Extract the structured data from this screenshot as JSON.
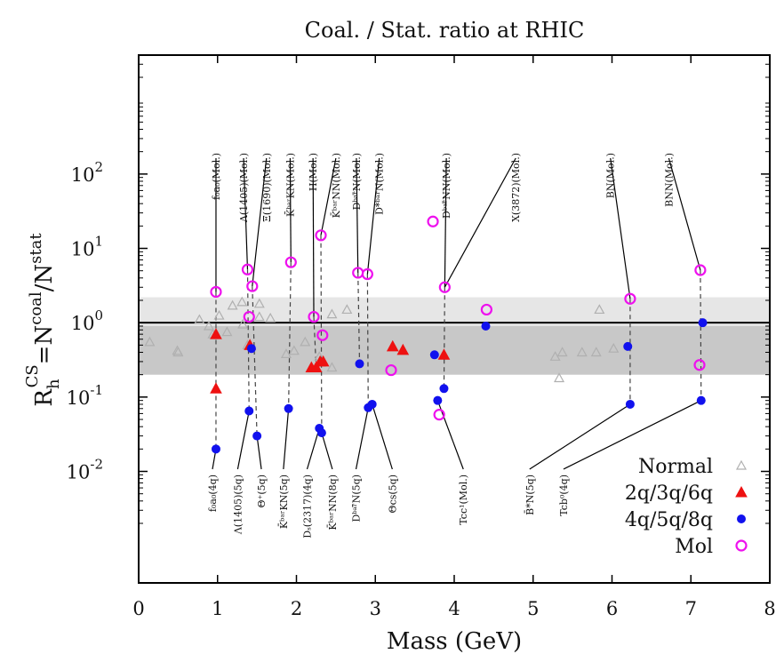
{
  "chart_data": {
    "type": "scatter",
    "title": "Coal. / Stat. ratio at RHIC",
    "xlabel": "Mass (GeV)",
    "ylabel": {
      "base": "R",
      "sub": "h",
      "sup": "CS",
      "rest": "=N",
      "num_sup": "coal",
      "den": "/N",
      "den_sup": "stat"
    },
    "xlim": [
      0,
      8
    ],
    "ylim_log10": [
      -3.5,
      3.6
    ],
    "log_y": true,
    "x_ticks": [
      0,
      1,
      2,
      3,
      4,
      5,
      6,
      7,
      8
    ],
    "x_tick_labels": [
      "0",
      "1",
      "2",
      "3",
      "4",
      "5",
      "6",
      "7",
      "8"
    ],
    "y_ticks": [
      {
        "value": 100,
        "base": "10",
        "exp": "2"
      },
      {
        "value": 10,
        "base": "10",
        "exp": "1"
      },
      {
        "value": 1,
        "base": "10",
        "exp": "0"
      },
      {
        "value": 0.1,
        "base": "10",
        "exp": "-1"
      },
      {
        "value": 0.01,
        "base": "10",
        "exp": "-2"
      }
    ],
    "bands": [
      {
        "y_min": 0.2,
        "y_max": 2.2,
        "color": "#e6e6e6"
      },
      {
        "y_min": 0.2,
        "y_max": 0.9,
        "color": "#c8c8c8"
      }
    ],
    "reference_line": {
      "y": 1.0,
      "color": "#000000"
    },
    "series": [
      {
        "name": "Normal",
        "marker": "triangle-open",
        "color": "#b0b0b0",
        "points": [
          {
            "x": 0.14,
            "y": 0.55
          },
          {
            "x": 0.49,
            "y": 0.42
          },
          {
            "x": 0.5,
            "y": 0.4
          },
          {
            "x": 0.77,
            "y": 1.1
          },
          {
            "x": 0.89,
            "y": 0.9
          },
          {
            "x": 0.94,
            "y": 0.7
          },
          {
            "x": 1.02,
            "y": 1.25
          },
          {
            "x": 1.12,
            "y": 0.75
          },
          {
            "x": 1.19,
            "y": 1.7
          },
          {
            "x": 1.31,
            "y": 1.9
          },
          {
            "x": 1.32,
            "y": 0.95
          },
          {
            "x": 1.38,
            "y": 0.5
          },
          {
            "x": 1.53,
            "y": 1.8
          },
          {
            "x": 1.53,
            "y": 1.2
          },
          {
            "x": 1.67,
            "y": 1.15
          },
          {
            "x": 1.87,
            "y": 0.38
          },
          {
            "x": 1.97,
            "y": 0.42
          },
          {
            "x": 2.11,
            "y": 0.55
          },
          {
            "x": 2.29,
            "y": 0.35
          },
          {
            "x": 2.45,
            "y": 1.3
          },
          {
            "x": 2.64,
            "y": 1.5
          },
          {
            "x": 2.45,
            "y": 0.25
          },
          {
            "x": 5.28,
            "y": 0.35
          },
          {
            "x": 5.33,
            "y": 0.18
          },
          {
            "x": 5.37,
            "y": 0.4
          },
          {
            "x": 5.62,
            "y": 0.4
          },
          {
            "x": 5.8,
            "y": 0.4
          },
          {
            "x": 5.84,
            "y": 1.5
          },
          {
            "x": 6.02,
            "y": 0.45
          }
        ]
      },
      {
        "name": "2q/3q/6q",
        "marker": "triangle-filled",
        "color": "#ee1111",
        "points": [
          {
            "x": 0.98,
            "y": 0.7
          },
          {
            "x": 0.98,
            "y": 0.13
          },
          {
            "x": 1.41,
            "y": 0.5
          },
          {
            "x": 2.19,
            "y": 0.25
          },
          {
            "x": 2.25,
            "y": 0.25
          },
          {
            "x": 2.3,
            "y": 0.3
          },
          {
            "x": 2.34,
            "y": 0.3
          },
          {
            "x": 3.22,
            "y": 0.48
          },
          {
            "x": 3.35,
            "y": 0.43
          },
          {
            "x": 3.87,
            "y": 0.37
          }
        ]
      },
      {
        "name": "4q/5q/8q",
        "marker": "circle-filled",
        "color": "#1111ee",
        "points": [
          {
            "x": 0.98,
            "y": 0.02
          },
          {
            "x": 1.4,
            "y": 0.065
          },
          {
            "x": 1.43,
            "y": 0.45
          },
          {
            "x": 1.5,
            "y": 0.03
          },
          {
            "x": 1.9,
            "y": 0.07
          },
          {
            "x": 2.29,
            "y": 0.038
          },
          {
            "x": 2.32,
            "y": 0.033
          },
          {
            "x": 2.8,
            "y": 0.28
          },
          {
            "x": 2.91,
            "y": 0.072
          },
          {
            "x": 2.96,
            "y": 0.08
          },
          {
            "x": 3.75,
            "y": 0.37
          },
          {
            "x": 3.79,
            "y": 0.09
          },
          {
            "x": 3.87,
            "y": 0.13
          },
          {
            "x": 4.4,
            "y": 0.9
          },
          {
            "x": 6.2,
            "y": 0.48
          },
          {
            "x": 6.23,
            "y": 0.08
          },
          {
            "x": 7.15,
            "y": 1.0
          },
          {
            "x": 7.13,
            "y": 0.09
          }
        ]
      },
      {
        "name": "Mol",
        "marker": "diamond-open",
        "color": "#ee11ee",
        "points": [
          {
            "x": 0.98,
            "y": 2.6
          },
          {
            "x": 1.38,
            "y": 5.2
          },
          {
            "x": 1.4,
            "y": 1.2
          },
          {
            "x": 1.44,
            "y": 3.1
          },
          {
            "x": 1.93,
            "y": 6.5
          },
          {
            "x": 2.22,
            "y": 1.2
          },
          {
            "x": 2.31,
            "y": 15
          },
          {
            "x": 2.33,
            "y": 0.68
          },
          {
            "x": 2.78,
            "y": 4.7
          },
          {
            "x": 2.9,
            "y": 4.5
          },
          {
            "x": 3.2,
            "y": 0.23
          },
          {
            "x": 3.73,
            "y": 23
          },
          {
            "x": 3.81,
            "y": 0.058
          },
          {
            "x": 3.88,
            "y": 3.0
          },
          {
            "x": 4.41,
            "y": 1.5
          },
          {
            "x": 6.23,
            "y": 2.1
          },
          {
            "x": 7.12,
            "y": 5.1
          },
          {
            "x": 7.11,
            "y": 0.27
          }
        ]
      }
    ],
    "annotations_top": [
      {
        "label": "f₀a₀(Mol.)",
        "text_x": 0.98,
        "text_y": 450,
        "points": [
          {
            "x": 0.98,
            "y": 2.6
          }
        ],
        "dashed_to": [
          {
            "x": 0.98,
            "y": 0.02
          }
        ]
      },
      {
        "label": "Λ(1405)(Mol.)",
        "text_x": 1.33,
        "text_y": 450,
        "points": [
          {
            "x": 1.38,
            "y": 5.2
          }
        ],
        "dashed_to": [
          {
            "x": 1.4,
            "y": 0.065
          }
        ]
      },
      {
        "label": "Ξ(1690)(Mol.)",
        "text_x": 1.62,
        "text_y": 450,
        "points": [
          {
            "x": 1.44,
            "y": 3.1
          }
        ],
        "dashed_to": [
          {
            "x": 1.5,
            "y": 0.03
          }
        ]
      },
      {
        "label": "K̄ᵇᵃʳKN(Mol.)",
        "text_x": 1.92,
        "text_y": 450,
        "points": [
          {
            "x": 1.93,
            "y": 6.5
          }
        ],
        "dashed_to": [
          {
            "x": 1.9,
            "y": 0.07
          }
        ]
      },
      {
        "label": "H(Mol.)",
        "text_x": 2.21,
        "text_y": 450,
        "points": [
          {
            "x": 2.22,
            "y": 1.2
          }
        ],
        "dashed_to": [
          {
            "x": 2.25,
            "y": 0.25
          }
        ]
      },
      {
        "label": "K̄ᵇᵃʳNN(Mol.)",
        "text_x": 2.5,
        "text_y": 450,
        "points": [
          {
            "x": 2.31,
            "y": 15
          }
        ],
        "dashed_to": [
          {
            "x": 2.32,
            "y": 0.033
          }
        ]
      },
      {
        "label": "Dᵇᵃʳ̄N(Mol.)",
        "text_x": 2.76,
        "text_y": 450,
        "points": [
          {
            "x": 2.78,
            "y": 4.7
          }
        ],
        "dashed_to": [
          {
            "x": 2.8,
            "y": 0.28
          }
        ]
      },
      {
        "label": "D*ᵇᵃʳN(Mol.)",
        "text_x": 3.05,
        "text_y": 450,
        "points": [
          {
            "x": 2.9,
            "y": 4.5
          }
        ],
        "dashed_to": [
          {
            "x": 2.91,
            "y": 0.072
          }
        ]
      },
      {
        "label": "Dᵇᵃʳ̄NN(Mol.)",
        "text_x": 3.9,
        "text_y": 450,
        "points": [
          {
            "x": 3.88,
            "y": 3.0
          }
        ],
        "dashed_to": [
          {
            "x": 3.87,
            "y": 0.13
          }
        ]
      },
      {
        "label": "X(3872)(Mol.)",
        "text_x": 4.78,
        "text_y": 450,
        "points": [
          {
            "x": 3.88,
            "y": 3.0
          }
        ],
        "dashed_to": []
      },
      {
        "label": "BN(Mol.)",
        "text_x": 5.98,
        "text_y": 450,
        "points": [
          {
            "x": 6.23,
            "y": 2.1
          }
        ],
        "dashed_to": [
          {
            "x": 6.23,
            "y": 0.08
          }
        ]
      },
      {
        "label": "BNN(Mol.)",
        "text_x": 6.72,
        "text_y": 450,
        "points": [
          {
            "x": 7.12,
            "y": 5.1
          }
        ],
        "dashed_to": [
          {
            "x": 7.13,
            "y": 0.09
          }
        ]
      }
    ],
    "annotations_bottom": [
      {
        "label": "f₀a₀(4q)",
        "text_x": 0.8,
        "point": {
          "x": 0.98,
          "y": 0.02
        }
      },
      {
        "label": "Λ(1405)(5q)",
        "text_x": 1.12,
        "point": {
          "x": 1.4,
          "y": 0.065
        }
      },
      {
        "label": "Θ⁺(5q)",
        "text_x": 1.42,
        "point": {
          "x": 1.5,
          "y": 0.03
        }
      },
      {
        "label": "K̄ᵇᵃʳKN(5q)",
        "text_x": 1.7,
        "point": {
          "x": 1.9,
          "y": 0.07
        }
      },
      {
        "label": "Dₛ(2317)(4q)",
        "text_x": 2.0,
        "point": {
          "x": 2.29,
          "y": 0.038
        }
      },
      {
        "label": "K̄ᵇᵃʳNN(8q)",
        "text_x": 2.32,
        "point": {
          "x": 2.32,
          "y": 0.033
        }
      },
      {
        "label": "Dᵇᵃʳ̄N(5q)",
        "text_x": 2.62,
        "point": {
          "x": 2.91,
          "y": 0.072
        }
      },
      {
        "label": "Θcs(5q)",
        "text_x": 3.08,
        "point": {
          "x": 2.96,
          "y": 0.08
        }
      },
      {
        "label": "Tcc¹(Mol.)",
        "text_x": 3.98,
        "point": {
          "x": 3.79,
          "y": 0.09
        }
      },
      {
        "label": "B̄*N(5q)",
        "text_x": 4.82,
        "point": {
          "x": 6.23,
          "y": 0.08
        }
      },
      {
        "label": "Tcb⁰(4q)",
        "text_x": 5.25,
        "point": {
          "x": 7.13,
          "y": 0.09
        }
      }
    ],
    "legend": {
      "placement": "bottom-right",
      "entries": [
        "Normal",
        "2q/3q/6q",
        "4q/5q/8q",
        "Mol"
      ]
    }
  }
}
